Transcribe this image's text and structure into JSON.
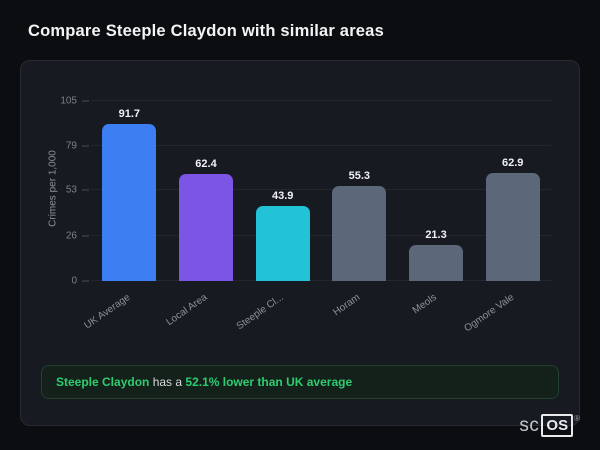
{
  "page": {
    "title": "Compare Steeple Claydon with similar areas"
  },
  "chart_data": {
    "type": "bar",
    "title": "Compare Steeple Claydon with similar areas",
    "xlabel": "",
    "ylabel": "Crimes per 1,000",
    "ylim": [
      0,
      105
    ],
    "yticks": [
      0,
      26,
      53,
      79,
      105
    ],
    "grid": true,
    "legend": false,
    "categories": [
      "UK Average",
      "Local Area",
      "Steeple Cl...",
      "Horam",
      "Meols",
      "Ogmore Vale"
    ],
    "values": [
      91.7,
      62.4,
      43.9,
      55.3,
      21.3,
      62.9
    ],
    "value_labels": [
      "91.7",
      "62.4",
      "43.9",
      "55.3",
      "21.3",
      "62.9"
    ],
    "bar_colors": [
      "#3d7ef2",
      "#7d55e6",
      "#22c3d6",
      "#5c6779",
      "#5c6779",
      "#5c6779"
    ]
  },
  "note": {
    "area": "Steeple Claydon",
    "connector": " has a ",
    "stat": "52.1% lower than UK average"
  },
  "logo": {
    "sc": "sc",
    "os": "OS",
    "registered": "®"
  },
  "colors": {
    "accent_green": "#2ecc71",
    "highlight_bar": "#22c3d6",
    "card_bg": "#171b21"
  }
}
